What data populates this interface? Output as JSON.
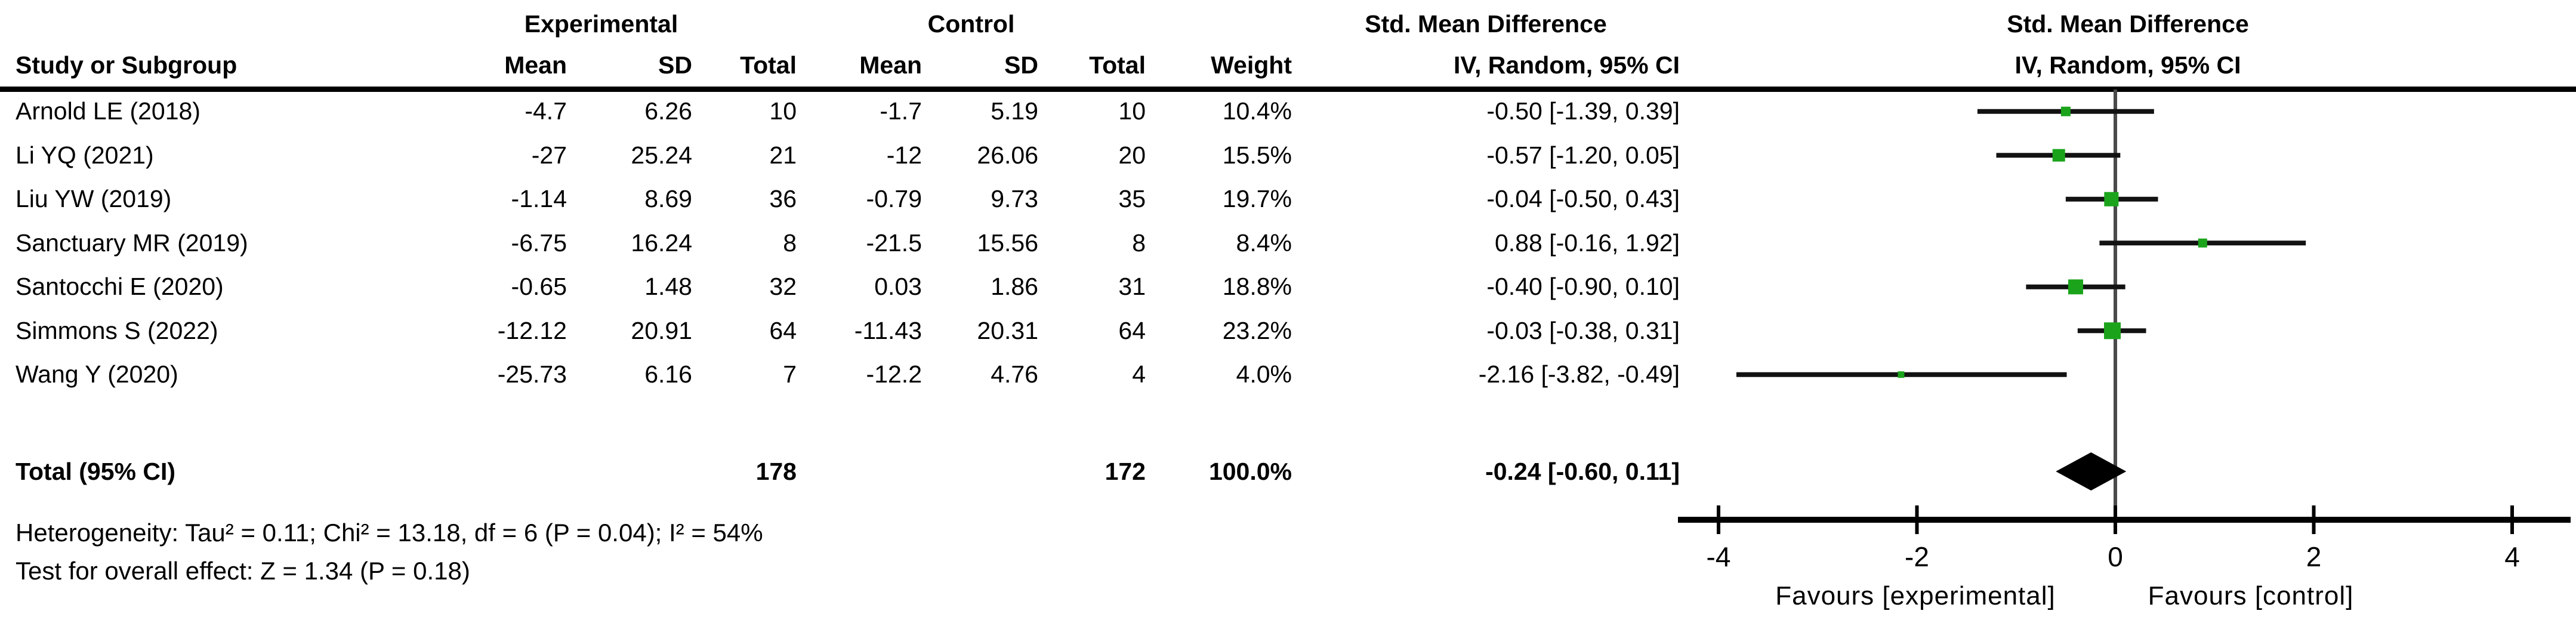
{
  "header": {
    "group_experimental": "Experimental",
    "group_control": "Control",
    "study_col": "Study or Subgroup",
    "mean_col": "Mean",
    "sd_col": "SD",
    "total_col": "Total",
    "weight_col": "Weight",
    "effect_col_line1": "Std. Mean Difference",
    "effect_col_line2": "IV, Random, 95% CI",
    "plot_col_line1": "Std. Mean Difference",
    "plot_col_line2": "IV, Random, 95% CI"
  },
  "chart_data": {
    "type": "forest",
    "effect_measure": "Std. Mean Difference",
    "model": "IV, Random, 95% CI",
    "studies": [
      {
        "name": "Arnold LE (2018)",
        "exp_mean": "-4.7",
        "exp_sd": "6.26",
        "exp_total": "10",
        "ctrl_mean": "-1.7",
        "ctrl_sd": "5.19",
        "ctrl_total": "10",
        "weight": "10.4%",
        "ci_label": "-0.50 [-1.39, 0.39]",
        "smd": -0.5,
        "ci_low": -1.39,
        "ci_high": 0.39,
        "marker_px": 16
      },
      {
        "name": "Li YQ (2021)",
        "exp_mean": "-27",
        "exp_sd": "25.24",
        "exp_total": "21",
        "ctrl_mean": "-12",
        "ctrl_sd": "26.06",
        "ctrl_total": "20",
        "weight": "15.5%",
        "ci_label": "-0.57 [-1.20, 0.05]",
        "smd": -0.57,
        "ci_low": -1.2,
        "ci_high": 0.05,
        "marker_px": 21
      },
      {
        "name": "Liu YW (2019)",
        "exp_mean": "-1.14",
        "exp_sd": "8.69",
        "exp_total": "36",
        "ctrl_mean": "-0.79",
        "ctrl_sd": "9.73",
        "ctrl_total": "35",
        "weight": "19.7%",
        "ci_label": "-0.04 [-0.50, 0.43]",
        "smd": -0.04,
        "ci_low": -0.5,
        "ci_high": 0.43,
        "marker_px": 24
      },
      {
        "name": "Sanctuary MR (2019)",
        "exp_mean": "-6.75",
        "exp_sd": "16.24",
        "exp_total": "8",
        "ctrl_mean": "-21.5",
        "ctrl_sd": "15.56",
        "ctrl_total": "8",
        "weight": "8.4%",
        "ci_label": "0.88 [-0.16, 1.92]",
        "smd": 0.88,
        "ci_low": -0.16,
        "ci_high": 1.92,
        "marker_px": 15
      },
      {
        "name": "Santocchi E (2020)",
        "exp_mean": "-0.65",
        "exp_sd": "1.48",
        "exp_total": "32",
        "ctrl_mean": "0.03",
        "ctrl_sd": "1.86",
        "ctrl_total": "31",
        "weight": "18.8%",
        "ci_label": "-0.40 [-0.90, 0.10]",
        "smd": -0.4,
        "ci_low": -0.9,
        "ci_high": 0.1,
        "marker_px": 25
      },
      {
        "name": "Simmons S (2022)",
        "exp_mean": "-12.12",
        "exp_sd": "20.91",
        "exp_total": "64",
        "ctrl_mean": "-11.43",
        "ctrl_sd": "20.31",
        "ctrl_total": "64",
        "weight": "23.2%",
        "ci_label": "-0.03 [-0.38, 0.31]",
        "smd": -0.03,
        "ci_low": -0.38,
        "ci_high": 0.31,
        "marker_px": 28
      },
      {
        "name": "Wang Y (2020)",
        "exp_mean": "-25.73",
        "exp_sd": "6.16",
        "exp_total": "7",
        "ctrl_mean": "-12.2",
        "ctrl_sd": "4.76",
        "ctrl_total": "4",
        "weight": "4.0%",
        "ci_label": "-2.16 [-3.82, -0.49]",
        "smd": -2.16,
        "ci_low": -3.82,
        "ci_high": -0.49,
        "marker_px": 11
      }
    ],
    "total": {
      "label": "Total (95% CI)",
      "exp_total": "178",
      "ctrl_total": "172",
      "weight": "100.0%",
      "ci_label": "-0.24 [-0.60, 0.11]",
      "smd": -0.245,
      "ci_low": -0.6,
      "ci_high": 0.11
    },
    "axis": {
      "min": -4,
      "max": 4,
      "ticks": [
        -4,
        -2,
        0,
        2,
        4
      ],
      "tick_labels": [
        "-4",
        "-2",
        "0",
        "2",
        "4"
      ],
      "favours_left": "Favours [experimental]",
      "favours_right": "Favours [control]"
    },
    "footnotes": {
      "heterogeneity": "Heterogeneity: Tau² = 0.11; Chi² = 13.18, df = 6 (P = 0.04); I² = 54%",
      "overall_effect": "Test for overall effect: Z = 1.34 (P = 0.18)"
    },
    "colors": {
      "marker_green": "#1BA41B",
      "ci_line": "#121212",
      "zero_line": "#4A4A4A",
      "axis": "#000000"
    }
  }
}
